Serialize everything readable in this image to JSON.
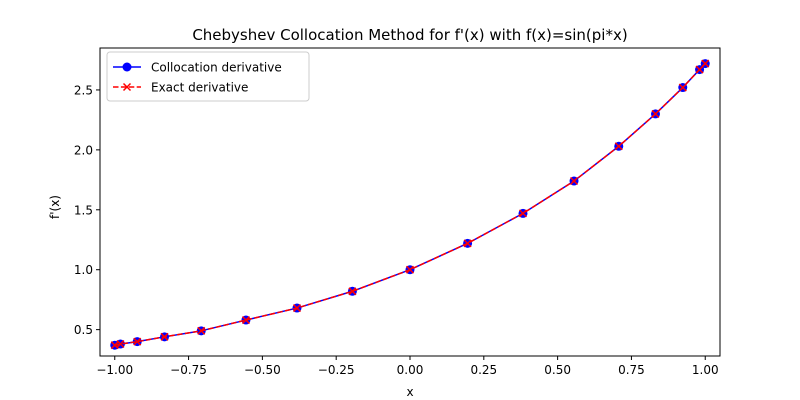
{
  "chart_data": {
    "type": "line",
    "title": "Chebyshev Collocation Method for f'(x) with f(x)=sin(pi*x)",
    "xlabel": "x",
    "ylabel": "f'(x)",
    "xlim": [
      -1.05,
      1.05
    ],
    "ylim": [
      0.28,
      2.85
    ],
    "xticks": [
      -1.0,
      -0.75,
      -0.5,
      -0.25,
      0.0,
      0.25,
      0.5,
      0.75,
      1.0
    ],
    "xtick_labels": [
      "−1.00",
      "−0.75",
      "−0.50",
      "−0.25",
      "0.00",
      "0.25",
      "0.50",
      "0.75",
      "1.00"
    ],
    "yticks": [
      0.5,
      1.0,
      1.5,
      2.0,
      2.5
    ],
    "ytick_labels": [
      "0.5",
      "1.0",
      "1.5",
      "2.0",
      "2.5"
    ],
    "grid": false,
    "legend_position": "top-left",
    "x": [
      -1.0,
      -0.9808,
      -0.9239,
      -0.8315,
      -0.7071,
      -0.5556,
      -0.3827,
      -0.1951,
      0.0,
      0.1951,
      0.3827,
      0.5556,
      0.7071,
      0.8315,
      0.9239,
      0.9808,
      1.0
    ],
    "series": [
      {
        "name": "Collocation derivative",
        "color": "#0000ff",
        "marker": "circle",
        "linestyle": "solid",
        "values": [
          0.37,
          0.38,
          0.4,
          0.44,
          0.49,
          0.58,
          0.68,
          0.82,
          1.0,
          1.22,
          1.47,
          1.74,
          2.03,
          2.3,
          2.52,
          2.67,
          2.72
        ]
      },
      {
        "name": "Exact derivative",
        "color": "#ff0000",
        "marker": "x",
        "linestyle": "dashed",
        "values": [
          0.37,
          0.38,
          0.4,
          0.44,
          0.49,
          0.58,
          0.68,
          0.82,
          1.0,
          1.22,
          1.47,
          1.74,
          2.03,
          2.3,
          2.52,
          2.67,
          2.72
        ]
      }
    ]
  }
}
